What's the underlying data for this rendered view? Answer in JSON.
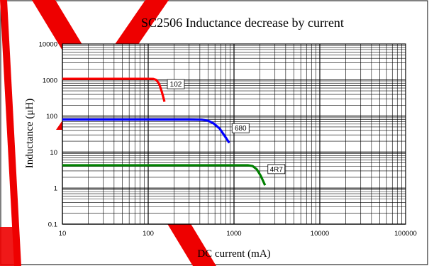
{
  "chart_data": {
    "type": "line",
    "title": "SC2506 Inductance decrease by current",
    "xlabel": "DC current (mA)",
    "ylabel": "Inductance (μH)",
    "xscale": "log",
    "yscale": "log",
    "xlim": [
      10,
      100000
    ],
    "ylim": [
      0.1,
      10000
    ],
    "x_ticks": [
      "10",
      "100",
      "1000",
      "10000",
      "100000"
    ],
    "y_ticks": [
      "0.1",
      "1",
      "10",
      "100",
      "1000",
      "10000"
    ],
    "grid": true,
    "series": [
      {
        "name": "102",
        "color": "#ff0000",
        "x": [
          10,
          50,
          100,
          115,
          125,
          135,
          145,
          155
        ],
        "y": [
          1080,
          1080,
          1080,
          1075,
          1000,
          750,
          450,
          250
        ]
      },
      {
        "name": "680",
        "color": "#0000ff",
        "x": [
          10,
          100,
          300,
          420,
          500,
          580,
          680,
          780,
          880
        ],
        "y": [
          80,
          80,
          80,
          79,
          74,
          62,
          45,
          28,
          18
        ]
      },
      {
        "name": "4R7",
        "color": "#008000",
        "x": [
          10,
          100,
          1000,
          1450,
          1650,
          1850,
          2050,
          2300
        ],
        "y": [
          4.3,
          4.3,
          4.3,
          4.3,
          4.1,
          3.3,
          2.2,
          1.2
        ]
      }
    ]
  }
}
